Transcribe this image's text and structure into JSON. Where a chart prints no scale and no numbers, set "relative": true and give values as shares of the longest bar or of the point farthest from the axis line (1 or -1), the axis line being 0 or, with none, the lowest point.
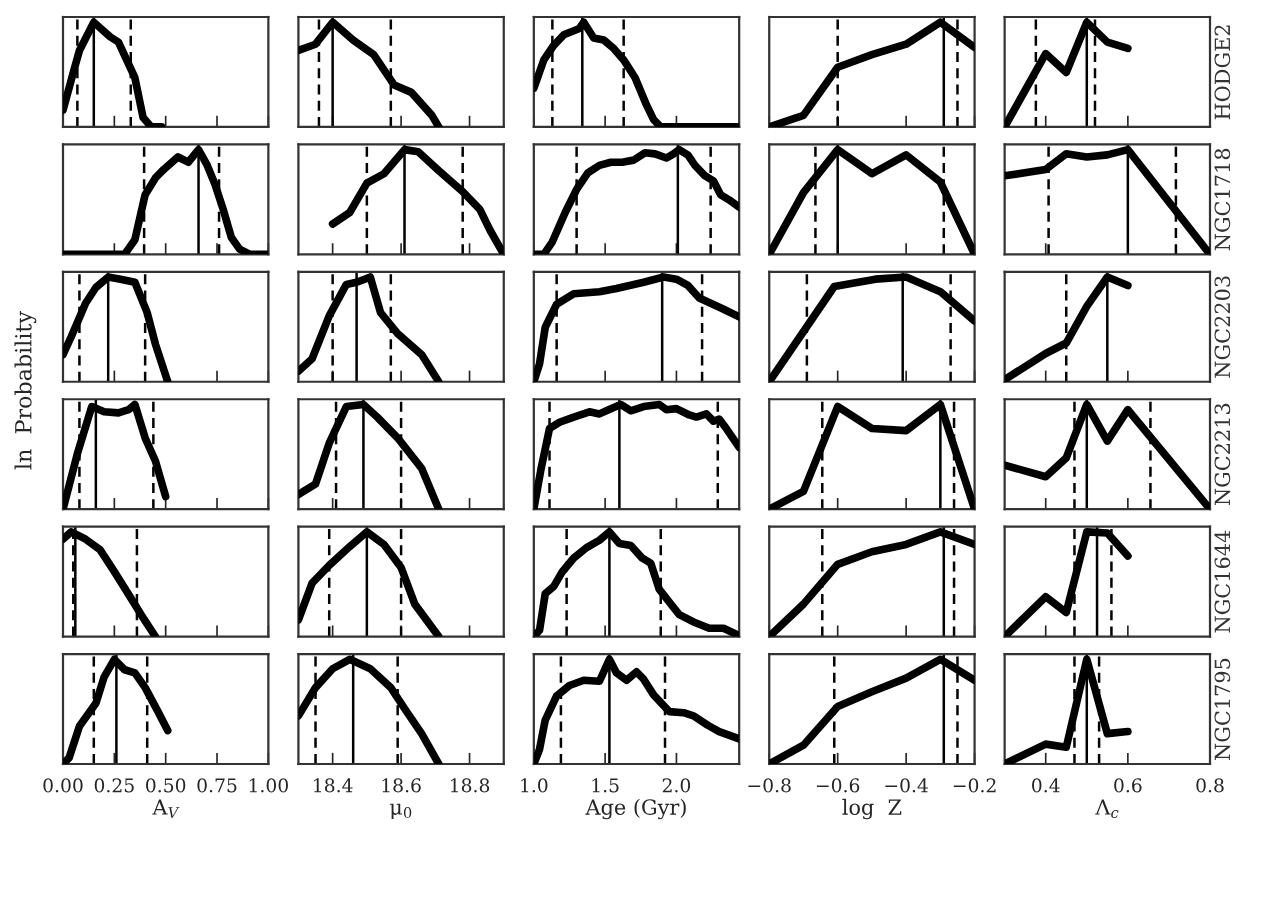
{
  "chart_data": [
    {
      "type": "line",
      "relative": true,
      "color": "#000000",
      "tick_labels": false,
      "xlim": [
        0,
        1
      ],
      "xticks": [
        0,
        0.25,
        0.5,
        0.75,
        1
      ],
      "x": [
        0,
        0.05,
        0.08,
        0.15,
        0.23,
        0.27,
        0.31,
        0.35,
        0.39,
        0.43,
        0.48
      ],
      "values": [
        0.16,
        0.52,
        0.73,
        1,
        0.86,
        0.81,
        0.64,
        0.47,
        0.09,
        0,
        0
      ],
      "ref_lines": [
        {
          "axis": "x",
          "value": 0.07,
          "line_style": "dashed"
        },
        {
          "axis": "x",
          "value": 0.15,
          "line_style": "solid"
        },
        {
          "axis": "x",
          "value": 0.33,
          "line_style": "dashed"
        }
      ]
    },
    {
      "type": "line",
      "relative": true,
      "color": "#000000",
      "tick_labels": false,
      "xlim": [
        18.3,
        18.9
      ],
      "xticks": [
        18.4,
        18.6,
        18.8
      ],
      "x": [
        18.3,
        18.35,
        18.4,
        18.46,
        18.52,
        18.58,
        18.63,
        18.69,
        18.71
      ],
      "values": [
        0.73,
        0.79,
        1,
        0.83,
        0.69,
        0.4,
        0.33,
        0.11,
        0
      ],
      "ref_lines": [
        {
          "axis": "x",
          "value": 18.36,
          "line_style": "dashed"
        },
        {
          "axis": "x",
          "value": 18.4,
          "line_style": "solid"
        },
        {
          "axis": "x",
          "value": 18.57,
          "line_style": "dashed"
        }
      ]
    },
    {
      "type": "line",
      "relative": true,
      "color": "#000000",
      "tick_labels": false,
      "xlim": [
        1.0,
        2.44
      ],
      "xticks": [
        1,
        1.5,
        2
      ],
      "x": [
        1.0,
        1.07,
        1.14,
        1.21,
        1.32,
        1.35,
        1.42,
        1.49,
        1.56,
        1.63,
        1.71,
        1.79,
        1.84,
        1.89,
        2.44
      ],
      "values": [
        0.37,
        0.64,
        0.78,
        0.88,
        0.94,
        1,
        0.85,
        0.83,
        0.75,
        0.64,
        0.47,
        0.21,
        0.07,
        0,
        0
      ],
      "ref_lines": [
        {
          "axis": "x",
          "value": 1.13,
          "line_style": "dashed"
        },
        {
          "axis": "x",
          "value": 1.34,
          "line_style": "solid"
        },
        {
          "axis": "x",
          "value": 1.63,
          "line_style": "dashed"
        }
      ]
    },
    {
      "type": "line",
      "relative": true,
      "color": "#000000",
      "tick_labels": false,
      "xlim": [
        -0.8,
        -0.2
      ],
      "xticks": [
        -0.8,
        -0.6,
        -0.4,
        -0.2
      ],
      "x": [
        -0.8,
        -0.7,
        -0.6,
        -0.5,
        -0.4,
        -0.3,
        -0.2
      ],
      "values": [
        0,
        0.11,
        0.57,
        0.69,
        0.79,
        1,
        0.76
      ],
      "ref_lines": [
        {
          "axis": "x",
          "value": -0.6,
          "line_style": "dashed"
        },
        {
          "axis": "x",
          "value": -0.29,
          "line_style": "solid"
        },
        {
          "axis": "x",
          "value": -0.25,
          "line_style": "dashed"
        }
      ]
    },
    {
      "type": "line",
      "relative": true,
      "color": "#000000",
      "tick_labels": false,
      "y2label": "HODGE2",
      "xlim": [
        0.3,
        0.8
      ],
      "xticks": [
        0.4,
        0.6,
        0.8
      ],
      "x": [
        0.3,
        0.4,
        0.45,
        0.5,
        0.55,
        0.6
      ],
      "values": [
        0,
        0.7,
        0.52,
        1,
        0.81,
        0.75
      ],
      "ref_lines": [
        {
          "axis": "x",
          "value": 0.376,
          "line_style": "dashed"
        },
        {
          "axis": "x",
          "value": 0.5,
          "line_style": "solid"
        },
        {
          "axis": "x",
          "value": 0.52,
          "line_style": "dashed"
        }
      ]
    },
    {
      "type": "line",
      "relative": true,
      "color": "#000000",
      "tick_labels": false,
      "xlim": [
        0,
        1
      ],
      "xticks": [
        0,
        0.25,
        0.5,
        0.75,
        1
      ],
      "x": [
        0,
        0.3,
        0.35,
        0.4,
        0.45,
        0.49,
        0.56,
        0.61,
        0.66,
        0.7,
        0.74,
        0.78,
        0.82,
        0.86,
        0.91,
        1.0
      ],
      "values": [
        0,
        0,
        0.14,
        0.57,
        0.73,
        0.81,
        0.93,
        0.88,
        1,
        0.86,
        0.67,
        0.43,
        0.16,
        0.05,
        0,
        0
      ],
      "ref_lines": [
        {
          "axis": "x",
          "value": 0.395,
          "line_style": "dashed"
        },
        {
          "axis": "x",
          "value": 0.66,
          "line_style": "solid"
        },
        {
          "axis": "x",
          "value": 0.76,
          "line_style": "dashed"
        }
      ]
    },
    {
      "type": "line",
      "relative": true,
      "color": "#000000",
      "tick_labels": false,
      "xlim": [
        18.3,
        18.9
      ],
      "xticks": [
        18.4,
        18.6,
        18.8
      ],
      "x": [
        18.4,
        18.45,
        18.5,
        18.55,
        18.61,
        18.65,
        18.71,
        18.78,
        18.83,
        18.86,
        18.9
      ],
      "values": [
        0.29,
        0.4,
        0.68,
        0.77,
        1,
        0.98,
        0.8,
        0.6,
        0.43,
        0.23,
        0
      ],
      "ref_lines": [
        {
          "axis": "x",
          "value": 18.5,
          "line_style": "dashed"
        },
        {
          "axis": "x",
          "value": 18.61,
          "line_style": "solid"
        },
        {
          "axis": "x",
          "value": 18.78,
          "line_style": "dashed"
        }
      ]
    },
    {
      "type": "line",
      "relative": true,
      "color": "#000000",
      "tick_labels": false,
      "xlim": [
        1.0,
        2.44
      ],
      "xticks": [
        1,
        1.5,
        2
      ],
      "x": [
        1.0,
        1.07,
        1.13,
        1.22,
        1.3,
        1.38,
        1.46,
        1.54,
        1.62,
        1.7,
        1.78,
        1.85,
        1.93,
        1.98,
        2.02,
        2.08,
        2.13,
        2.2,
        2.26,
        2.31,
        2.37,
        2.44
      ],
      "values": [
        0,
        0,
        0.12,
        0.4,
        0.62,
        0.78,
        0.85,
        0.88,
        0.88,
        0.9,
        0.97,
        0.96,
        0.92,
        0.96,
        1,
        0.95,
        0.85,
        0.75,
        0.7,
        0.57,
        0.52,
        0.45
      ],
      "ref_lines": [
        {
          "axis": "x",
          "value": 1.3,
          "line_style": "dashed"
        },
        {
          "axis": "x",
          "value": 2.01,
          "line_style": "solid"
        },
        {
          "axis": "x",
          "value": 2.24,
          "line_style": "dashed"
        }
      ]
    },
    {
      "type": "line",
      "relative": true,
      "color": "#000000",
      "tick_labels": false,
      "xlim": [
        -0.8,
        -0.2
      ],
      "xticks": [
        -0.8,
        -0.6,
        -0.4,
        -0.2
      ],
      "x": [
        -0.8,
        -0.7,
        -0.6,
        -0.5,
        -0.4,
        -0.3,
        -0.2
      ],
      "values": [
        0,
        0.59,
        1,
        0.77,
        0.95,
        0.69,
        0
      ],
      "ref_lines": [
        {
          "axis": "x",
          "value": -0.665,
          "line_style": "dashed"
        },
        {
          "axis": "x",
          "value": -0.6,
          "line_style": "solid"
        },
        {
          "axis": "x",
          "value": -0.29,
          "line_style": "dashed"
        }
      ]
    },
    {
      "type": "line",
      "relative": true,
      "color": "#000000",
      "tick_labels": false,
      "y2label": "NGC1718",
      "xlim": [
        0.3,
        0.8
      ],
      "xticks": [
        0.4,
        0.6,
        0.8
      ],
      "x": [
        0.3,
        0.4,
        0.45,
        0.5,
        0.55,
        0.6,
        0.8
      ],
      "values": [
        0.75,
        0.81,
        0.96,
        0.93,
        0.95,
        1,
        0
      ],
      "ref_lines": [
        {
          "axis": "x",
          "value": 0.407,
          "line_style": "dashed"
        },
        {
          "axis": "x",
          "value": 0.6,
          "line_style": "solid"
        },
        {
          "axis": "x",
          "value": 0.717,
          "line_style": "dashed"
        }
      ]
    },
    {
      "type": "line",
      "relative": true,
      "color": "#000000",
      "tick_labels": false,
      "ylabel": "ln  Probability",
      "xlim": [
        0,
        1
      ],
      "xticks": [
        0,
        0.25,
        0.5,
        0.75,
        1
      ],
      "x": [
        0,
        0.04,
        0.11,
        0.16,
        0.22,
        0.28,
        0.35,
        0.41,
        0.45,
        0.51
      ],
      "values": [
        0.26,
        0.43,
        0.75,
        0.9,
        1,
        0.98,
        0.95,
        0.66,
        0.36,
        0
      ],
      "ref_lines": [
        {
          "axis": "x",
          "value": 0.08,
          "line_style": "dashed"
        },
        {
          "axis": "x",
          "value": 0.22,
          "line_style": "solid"
        },
        {
          "axis": "x",
          "value": 0.4,
          "line_style": "dashed"
        }
      ]
    },
    {
      "type": "line",
      "relative": true,
      "color": "#000000",
      "tick_labels": false,
      "xlim": [
        18.3,
        18.9
      ],
      "xticks": [
        18.4,
        18.6,
        18.8
      ],
      "x": [
        18.3,
        18.34,
        18.39,
        18.44,
        18.47,
        18.51,
        18.54,
        18.59,
        18.66,
        18.71
      ],
      "values": [
        0.1,
        0.22,
        0.63,
        0.93,
        0.95,
        1,
        0.66,
        0.46,
        0.26,
        0
      ],
      "ref_lines": [
        {
          "axis": "x",
          "value": 18.4,
          "line_style": "dashed"
        },
        {
          "axis": "x",
          "value": 18.47,
          "line_style": "solid"
        },
        {
          "axis": "x",
          "value": 18.57,
          "line_style": "dashed"
        }
      ]
    },
    {
      "type": "line",
      "relative": true,
      "color": "#000000",
      "tick_labels": false,
      "xlim": [
        1.0,
        2.44
      ],
      "xticks": [
        1,
        1.5,
        2
      ],
      "x": [
        1.0,
        1.04,
        1.08,
        1.16,
        1.28,
        1.46,
        1.58,
        1.77,
        1.91,
        2.0,
        2.08,
        2.16,
        2.24,
        2.32,
        2.44
      ],
      "values": [
        0,
        0.17,
        0.52,
        0.74,
        0.84,
        0.86,
        0.89,
        0.95,
        1,
        0.98,
        0.92,
        0.8,
        0.75,
        0.7,
        0.62
      ],
      "ref_lines": [
        {
          "axis": "x",
          "value": 1.16,
          "line_style": "dashed"
        },
        {
          "axis": "x",
          "value": 1.9,
          "line_style": "solid"
        },
        {
          "axis": "x",
          "value": 2.18,
          "line_style": "dashed"
        }
      ]
    },
    {
      "type": "line",
      "relative": true,
      "color": "#000000",
      "tick_labels": false,
      "xlim": [
        -0.8,
        -0.2
      ],
      "xticks": [
        -0.8,
        -0.6,
        -0.4,
        -0.2
      ],
      "x": [
        -0.8,
        -0.61,
        -0.49,
        -0.4,
        -0.3,
        -0.2
      ],
      "values": [
        0,
        0.91,
        0.98,
        1,
        0.86,
        0.58
      ],
      "ref_lines": [
        {
          "axis": "x",
          "value": -0.69,
          "line_style": "dashed"
        },
        {
          "axis": "x",
          "value": -0.41,
          "line_style": "solid"
        },
        {
          "axis": "x",
          "value": -0.27,
          "line_style": "dashed"
        }
      ]
    },
    {
      "type": "line",
      "relative": true,
      "color": "#000000",
      "tick_labels": false,
      "y2label": "NGC2203",
      "xlim": [
        0.3,
        0.8
      ],
      "xticks": [
        0.4,
        0.6,
        0.8
      ],
      "x": [
        0.3,
        0.4,
        0.45,
        0.5,
        0.55,
        0.6
      ],
      "values": [
        0.02,
        0.27,
        0.37,
        0.72,
        1,
        0.92
      ],
      "ref_lines": [
        {
          "axis": "x",
          "value": 0.45,
          "line_style": "dashed"
        },
        {
          "axis": "x",
          "value": 0.55,
          "line_style": "solid"
        }
      ]
    },
    {
      "type": "line",
      "relative": true,
      "color": "#000000",
      "tick_labels": false,
      "xlim": [
        0,
        1
      ],
      "xticks": [
        0,
        0.25,
        0.5,
        0.75,
        1
      ],
      "x": [
        0,
        0.07,
        0.14,
        0.2,
        0.27,
        0.32,
        0.35,
        0.4,
        0.45,
        0.5
      ],
      "values": [
        0,
        0.53,
        0.98,
        0.93,
        0.92,
        0.95,
        1,
        0.68,
        0.46,
        0.12
      ],
      "ref_lines": [
        {
          "axis": "x",
          "value": 0.08,
          "line_style": "dashed"
        },
        {
          "axis": "x",
          "value": 0.16,
          "line_style": "solid"
        },
        {
          "axis": "x",
          "value": 0.44,
          "line_style": "dashed"
        }
      ]
    },
    {
      "type": "line",
      "relative": true,
      "color": "#000000",
      "tick_labels": false,
      "xlim": [
        18.3,
        18.9
      ],
      "xticks": [
        18.4,
        18.6,
        18.8
      ],
      "x": [
        18.3,
        18.35,
        18.39,
        18.44,
        18.49,
        18.53,
        18.59,
        18.66,
        18.71
      ],
      "values": [
        0.14,
        0.24,
        0.63,
        0.98,
        1,
        0.88,
        0.68,
        0.39,
        0
      ],
      "ref_lines": [
        {
          "axis": "x",
          "value": 18.41,
          "line_style": "dashed"
        },
        {
          "axis": "x",
          "value": 18.49,
          "line_style": "solid"
        },
        {
          "axis": "x",
          "value": 18.6,
          "line_style": "dashed"
        }
      ]
    },
    {
      "type": "line",
      "relative": true,
      "color": "#000000",
      "tick_labels": false,
      "xlim": [
        1.0,
        2.44
      ],
      "xticks": [
        1,
        1.5,
        2
      ],
      "x": [
        1.0,
        1.05,
        1.11,
        1.18,
        1.28,
        1.39,
        1.46,
        1.54,
        1.61,
        1.68,
        1.77,
        1.88,
        1.93,
        2.0,
        2.09,
        2.14,
        2.21,
        2.26,
        2.3,
        2.35,
        2.44
      ],
      "values": [
        0,
        0.38,
        0.77,
        0.83,
        0.88,
        0.93,
        0.91,
        0.96,
        1,
        0.94,
        0.98,
        1,
        0.95,
        0.96,
        0.9,
        0.88,
        0.91,
        0.84,
        0.86,
        0.77,
        0.59
      ],
      "ref_lines": [
        {
          "axis": "x",
          "value": 1.11,
          "line_style": "dashed"
        },
        {
          "axis": "x",
          "value": 1.6,
          "line_style": "solid"
        },
        {
          "axis": "x",
          "value": 2.29,
          "line_style": "dashed"
        }
      ]
    },
    {
      "type": "line",
      "relative": true,
      "color": "#000000",
      "tick_labels": false,
      "xlim": [
        -0.8,
        -0.2
      ],
      "xticks": [
        -0.8,
        -0.6,
        -0.4,
        -0.2
      ],
      "x": [
        -0.8,
        -0.7,
        -0.6,
        -0.5,
        -0.4,
        -0.3,
        -0.2
      ],
      "values": [
        0,
        0.17,
        0.98,
        0.77,
        0.75,
        1,
        0
      ],
      "ref_lines": [
        {
          "axis": "x",
          "value": -0.645,
          "line_style": "dashed"
        },
        {
          "axis": "x",
          "value": -0.3,
          "line_style": "solid"
        },
        {
          "axis": "x",
          "value": -0.26,
          "line_style": "dashed"
        }
      ]
    },
    {
      "type": "line",
      "relative": true,
      "color": "#000000",
      "tick_labels": false,
      "y2label": "NGC2213",
      "xlim": [
        0.3,
        0.8
      ],
      "xticks": [
        0.4,
        0.6,
        0.8
      ],
      "x": [
        0.3,
        0.4,
        0.45,
        0.5,
        0.55,
        0.6,
        0.8
      ],
      "values": [
        0.42,
        0.31,
        0.49,
        1,
        0.65,
        0.95,
        0
      ],
      "ref_lines": [
        {
          "axis": "x",
          "value": 0.47,
          "line_style": "dashed"
        },
        {
          "axis": "x",
          "value": 0.5,
          "line_style": "solid"
        },
        {
          "axis": "x",
          "value": 0.655,
          "line_style": "dashed"
        }
      ]
    },
    {
      "type": "line",
      "relative": true,
      "color": "#000000",
      "tick_labels": false,
      "xlim": [
        0,
        1
      ],
      "xticks": [
        0,
        0.25,
        0.5,
        0.75,
        1
      ],
      "x": [
        0,
        0.04,
        0.11,
        0.18,
        0.25,
        0.33,
        0.38,
        0.45
      ],
      "values": [
        0.93,
        1,
        0.93,
        0.83,
        0.62,
        0.37,
        0.21,
        0
      ],
      "ref_lines": [
        {
          "axis": "x",
          "value": 0.05,
          "line_style": "dashed"
        },
        {
          "axis": "x",
          "value": 0.06,
          "line_style": "solid"
        },
        {
          "axis": "x",
          "value": 0.36,
          "line_style": "dashed"
        }
      ]
    },
    {
      "type": "line",
      "relative": true,
      "color": "#000000",
      "tick_labels": false,
      "xlim": [
        18.3,
        18.9
      ],
      "xticks": [
        18.4,
        18.6,
        18.8
      ],
      "x": [
        18.3,
        18.34,
        18.39,
        18.45,
        18.5,
        18.55,
        18.6,
        18.64,
        18.71
      ],
      "values": [
        0.16,
        0.51,
        0.68,
        0.86,
        1,
        0.88,
        0.66,
        0.31,
        0
      ],
      "ref_lines": [
        {
          "axis": "x",
          "value": 18.39,
          "line_style": "dashed"
        },
        {
          "axis": "x",
          "value": 18.5,
          "line_style": "solid"
        },
        {
          "axis": "x",
          "value": 18.6,
          "line_style": "dashed"
        }
      ]
    },
    {
      "type": "line",
      "relative": true,
      "color": "#000000",
      "tick_labels": false,
      "xlim": [
        1.0,
        2.44
      ],
      "xticks": [
        1,
        1.5,
        2
      ],
      "x": [
        1.0,
        1.04,
        1.08,
        1.14,
        1.2,
        1.28,
        1.37,
        1.46,
        1.53,
        1.6,
        1.68,
        1.76,
        1.82,
        1.88,
        1.95,
        2.02,
        2.12,
        2.23,
        2.33,
        2.44
      ],
      "values": [
        0,
        0.06,
        0.41,
        0.48,
        0.62,
        0.75,
        0.85,
        0.92,
        1,
        0.89,
        0.87,
        0.75,
        0.7,
        0.45,
        0.33,
        0.21,
        0.14,
        0.08,
        0.08,
        0.01
      ],
      "ref_lines": [
        {
          "axis": "x",
          "value": 1.23,
          "line_style": "dashed"
        },
        {
          "axis": "x",
          "value": 1.53,
          "line_style": "solid"
        },
        {
          "axis": "x",
          "value": 1.89,
          "line_style": "dashed"
        }
      ]
    },
    {
      "type": "line",
      "relative": true,
      "color": "#000000",
      "tick_labels": false,
      "xlim": [
        -0.8,
        -0.2
      ],
      "xticks": [
        -0.8,
        -0.6,
        -0.4,
        -0.2
      ],
      "x": [
        -0.8,
        -0.7,
        -0.6,
        -0.5,
        -0.4,
        -0.3,
        -0.2
      ],
      "values": [
        0,
        0.31,
        0.69,
        0.81,
        0.88,
        1,
        0.88
      ],
      "ref_lines": [
        {
          "axis": "x",
          "value": -0.645,
          "line_style": "dashed"
        },
        {
          "axis": "x",
          "value": -0.29,
          "line_style": "solid"
        },
        {
          "axis": "x",
          "value": -0.26,
          "line_style": "dashed"
        }
      ]
    },
    {
      "type": "line",
      "relative": true,
      "color": "#000000",
      "tick_labels": false,
      "y2label": "NGC1644",
      "xlim": [
        0.3,
        0.8
      ],
      "xticks": [
        0.4,
        0.6,
        0.8
      ],
      "x": [
        0.3,
        0.4,
        0.45,
        0.5,
        0.55,
        0.6
      ],
      "values": [
        0,
        0.38,
        0.23,
        1,
        0.99,
        0.77
      ],
      "ref_lines": [
        {
          "axis": "x",
          "value": 0.47,
          "line_style": "dashed"
        },
        {
          "axis": "x",
          "value": 0.525,
          "line_style": "solid"
        },
        {
          "axis": "x",
          "value": 0.56,
          "line_style": "dashed"
        }
      ]
    },
    {
      "type": "line",
      "relative": true,
      "color": "#000000",
      "tick_labels": "x",
      "xlabel": "A$_{V}$",
      "xlim": [
        0,
        1
      ],
      "xticks": [
        {
          "value": 0,
          "label": "0.00"
        },
        {
          "value": 0.25,
          "label": "0.25"
        },
        {
          "value": 0.5,
          "label": "0.50"
        },
        {
          "value": 0.75,
          "label": "0.75"
        },
        {
          "value": 1,
          "label": "1.00"
        }
      ],
      "x": [
        0,
        0.03,
        0.08,
        0.16,
        0.2,
        0.25,
        0.3,
        0.35,
        0.4,
        0.46,
        0.51
      ],
      "values": [
        0,
        0.06,
        0.36,
        0.58,
        0.83,
        1,
        0.9,
        0.87,
        0.73,
        0.51,
        0.32
      ],
      "ref_lines": [
        {
          "axis": "x",
          "value": 0.15,
          "line_style": "dashed"
        },
        {
          "axis": "x",
          "value": 0.26,
          "line_style": "solid"
        },
        {
          "axis": "x",
          "value": 0.41,
          "line_style": "dashed"
        }
      ]
    },
    {
      "type": "line",
      "relative": true,
      "color": "#000000",
      "tick_labels": "x",
      "xlabel": "μ$_{0}$",
      "xlim": [
        18.3,
        18.9
      ],
      "xticks": [
        18.4,
        18.6,
        18.8
      ],
      "x": [
        18.3,
        18.35,
        18.4,
        18.45,
        18.51,
        18.57,
        18.61,
        18.66,
        18.71
      ],
      "values": [
        0.46,
        0.73,
        0.91,
        1,
        0.91,
        0.73,
        0.53,
        0.29,
        0
      ],
      "ref_lines": [
        {
          "axis": "x",
          "value": 18.35,
          "line_style": "dashed"
        },
        {
          "axis": "x",
          "value": 18.46,
          "line_style": "solid"
        },
        {
          "axis": "x",
          "value": 18.59,
          "line_style": "dashed"
        }
      ]
    },
    {
      "type": "line",
      "relative": true,
      "color": "#000000",
      "tick_labels": "x",
      "xlabel": "Age (Gyr)",
      "xlim": [
        1.0,
        2.44
      ],
      "xticks": [
        {
          "value": 1,
          "label": "1.0"
        },
        {
          "value": 1.5,
          "label": "1.5"
        },
        {
          "value": 2,
          "label": "2.0"
        }
      ],
      "x": [
        1.0,
        1.04,
        1.08,
        1.16,
        1.25,
        1.35,
        1.46,
        1.53,
        1.58,
        1.65,
        1.72,
        1.77,
        1.84,
        1.95,
        2.05,
        2.12,
        2.22,
        2.3,
        2.44
      ],
      "values": [
        0,
        0.14,
        0.42,
        0.65,
        0.75,
        0.8,
        0.79,
        1,
        0.87,
        0.8,
        0.88,
        0.81,
        0.66,
        0.5,
        0.49,
        0.46,
        0.37,
        0.31,
        0.24
      ],
      "ref_lines": [
        {
          "axis": "x",
          "value": 1.19,
          "line_style": "dashed"
        },
        {
          "axis": "x",
          "value": 1.53,
          "line_style": "solid"
        },
        {
          "axis": "x",
          "value": 1.92,
          "line_style": "dashed"
        }
      ]
    },
    {
      "type": "line",
      "relative": true,
      "color": "#000000",
      "tick_labels": "x",
      "xlabel": "log  Z",
      "xlim": [
        -0.8,
        -0.2
      ],
      "xticks": [
        {
          "value": -0.8,
          "label": "−0.8"
        },
        {
          "value": -0.6,
          "label": "−0.6"
        },
        {
          "value": -0.4,
          "label": "−0.4"
        },
        {
          "value": -0.2,
          "label": "−0.2"
        }
      ],
      "x": [
        -0.8,
        -0.7,
        -0.6,
        -0.5,
        -0.4,
        -0.3,
        -0.2
      ],
      "values": [
        0,
        0.18,
        0.55,
        0.69,
        0.82,
        1,
        0.8
      ],
      "ref_lines": [
        {
          "axis": "x",
          "value": -0.61,
          "line_style": "dashed"
        },
        {
          "axis": "x",
          "value": -0.29,
          "line_style": "solid"
        },
        {
          "axis": "x",
          "value": -0.25,
          "line_style": "dashed"
        }
      ]
    },
    {
      "type": "line",
      "relative": true,
      "color": "#000000",
      "tick_labels": "x",
      "y2label": "NGC1795",
      "xlabel": "Λ$_{c}$",
      "xlim": [
        0.3,
        0.8
      ],
      "xticks": [
        0.4,
        0.6,
        0.8
      ],
      "x": [
        0.3,
        0.4,
        0.45,
        0.5,
        0.55,
        0.6
      ],
      "values": [
        0,
        0.19,
        0.16,
        1,
        0.29,
        0.31
      ],
      "ref_lines": [
        {
          "axis": "x",
          "value": 0.47,
          "line_style": "dashed"
        },
        {
          "axis": "x",
          "value": 0.5,
          "line_style": "solid"
        },
        {
          "axis": "x",
          "value": 0.53,
          "line_style": "dashed"
        }
      ]
    }
  ]
}
